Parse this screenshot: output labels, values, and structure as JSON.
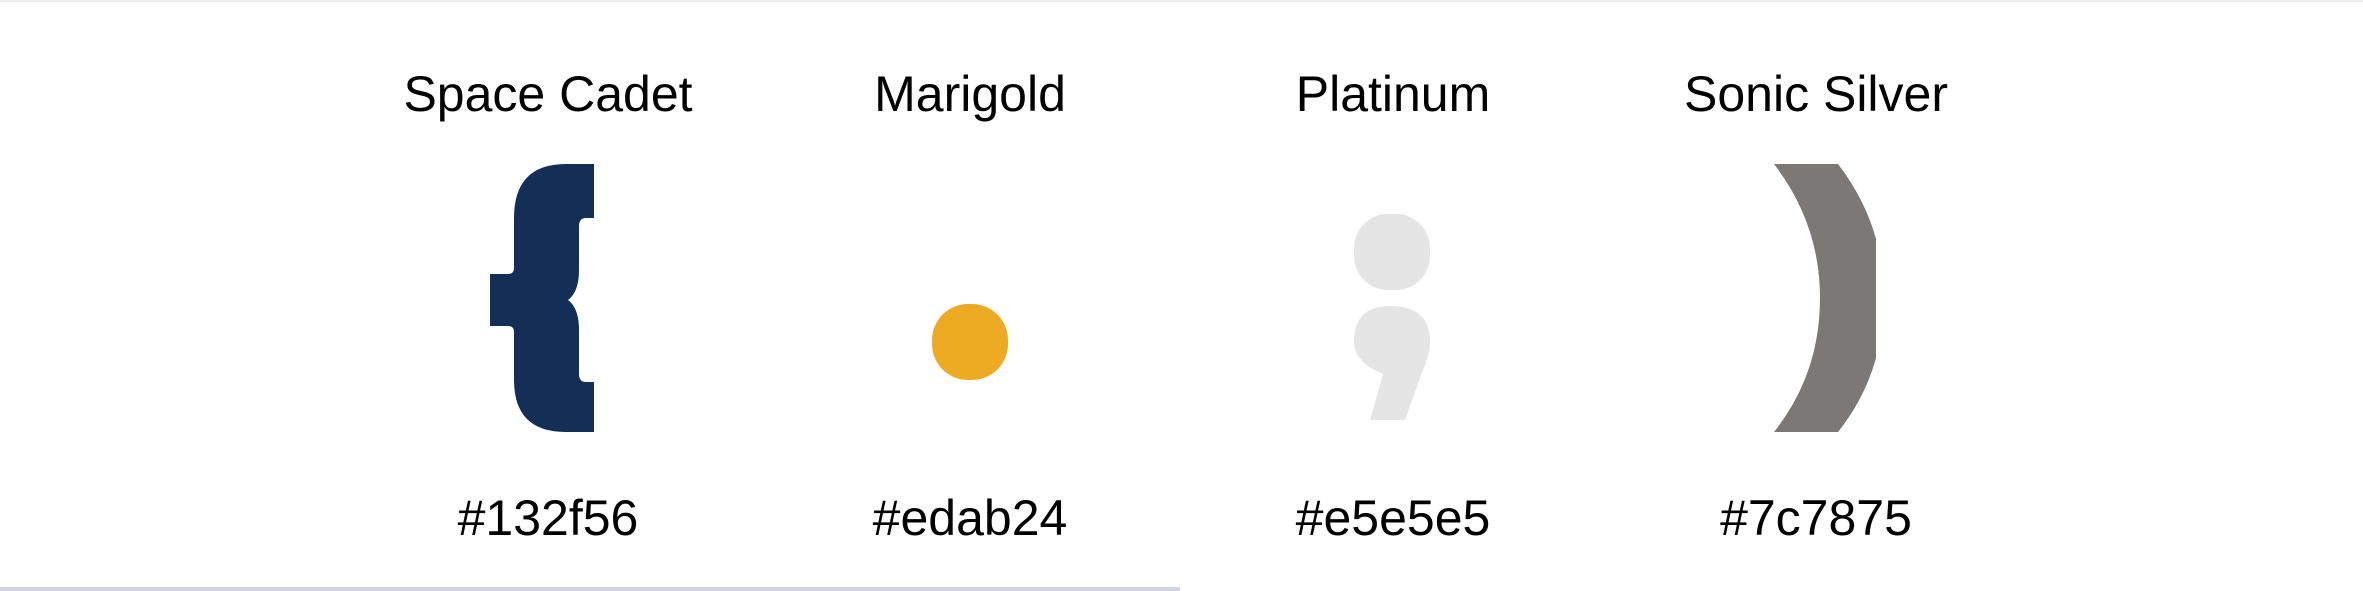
{
  "swatches": [
    {
      "name": "Space Cadet",
      "hex": "#132f56",
      "color": "#132f56",
      "glyph": "left-curly-brace-icon"
    },
    {
      "name": "Marigold",
      "hex": "#edab24",
      "color": "#edab24",
      "glyph": "period-icon"
    },
    {
      "name": "Platinum",
      "hex": "#e5e5e5",
      "color": "#e5e5e5",
      "glyph": "semicolon-icon"
    },
    {
      "name": "Sonic Silver",
      "hex": "#7c7875",
      "color": "#7c7875",
      "glyph": "right-parenthesis-icon"
    }
  ]
}
